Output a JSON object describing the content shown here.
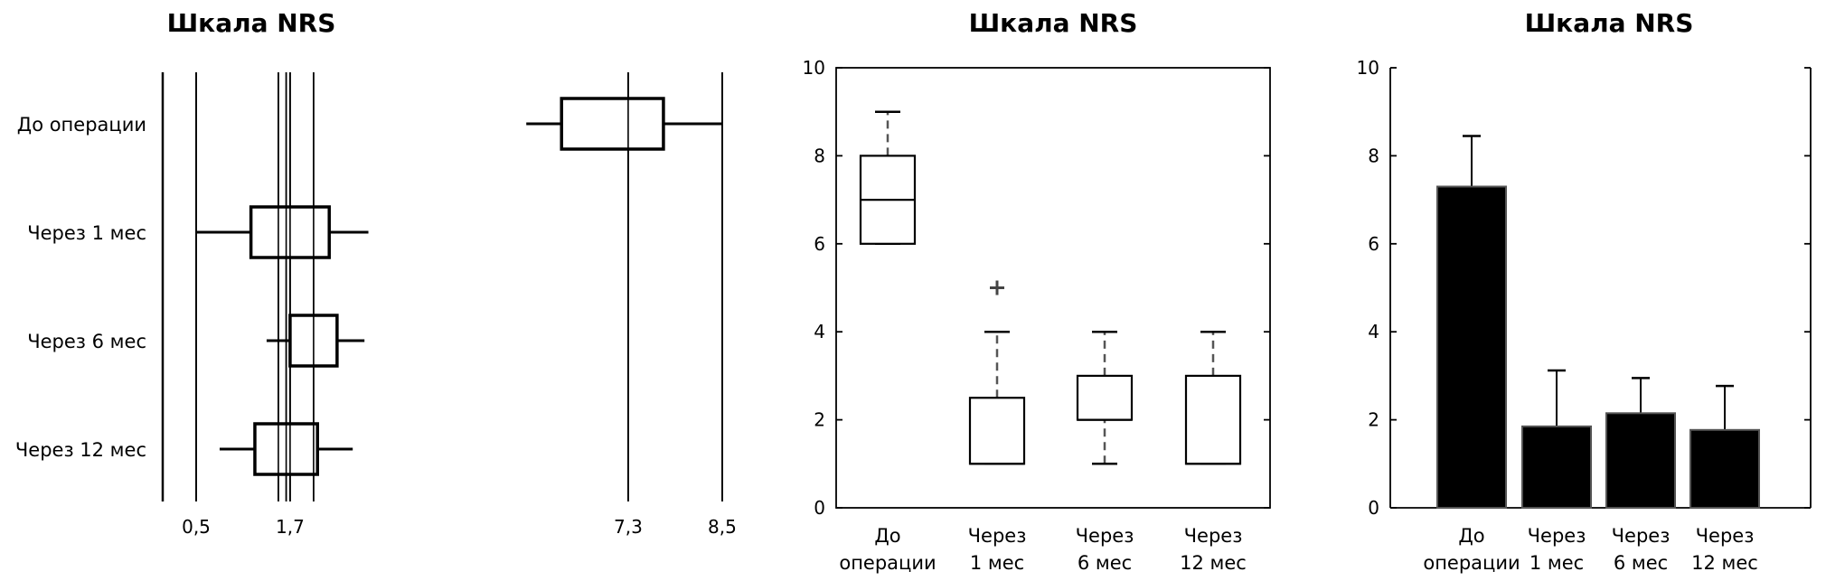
{
  "chart_data": [
    {
      "type": "box",
      "orientation": "horizontal",
      "title": "Шкала NRS",
      "categories": [
        "До операции",
        "Через 1 мес",
        "Через 6 мес",
        "Через 12 мес"
      ],
      "boxes": [
        {
          "whisker_low": 6.0,
          "q1": 6.45,
          "q3": 7.75,
          "whisker_high": 8.5
        },
        {
          "whisker_low": 0.5,
          "q1": 1.2,
          "q3": 2.2,
          "whisker_high": 2.7
        },
        {
          "whisker_low": 1.4,
          "q1": 1.7,
          "q3": 2.3,
          "whisker_high": 2.65
        },
        {
          "whisker_low": 0.8,
          "q1": 1.25,
          "q3": 2.05,
          "whisker_high": 2.5
        }
      ],
      "reference_lines": [
        0.5,
        1.7,
        7.3,
        8.5
      ],
      "reference_labels": [
        "0,5",
        "1,7",
        "7,3",
        "8,5"
      ],
      "extra_lines": [
        1.55,
        1.65,
        2.0
      ],
      "axis_break": {
        "from": 3.0,
        "to": 5.3
      }
    },
    {
      "type": "box",
      "title": "Шкала NRS",
      "categories": [
        [
          "До",
          "операции"
        ],
        [
          "Через",
          "1 мес"
        ],
        [
          "Через",
          "6 мес"
        ],
        [
          "Через",
          "12 мес"
        ]
      ],
      "boxes": [
        {
          "whisker_low": 6,
          "q1": 6,
          "median": 7,
          "q3": 8,
          "whisker_high": 9,
          "outliers": []
        },
        {
          "whisker_low": 1,
          "q1": 1,
          "median": 1,
          "q3": 2.5,
          "whisker_high": 4,
          "outliers": [
            5
          ]
        },
        {
          "whisker_low": 1,
          "q1": 2,
          "median": 2,
          "q3": 3,
          "whisker_high": 4,
          "outliers": []
        },
        {
          "whisker_low": 1,
          "q1": 1,
          "median": 1,
          "q3": 3,
          "whisker_high": 4,
          "outliers": []
        }
      ],
      "ylim": [
        0,
        10
      ],
      "yticks": [
        "0",
        "2",
        "4",
        "6",
        "8",
        "10"
      ]
    },
    {
      "type": "bar",
      "title": "Шкала NRS",
      "categories": [
        [
          "До",
          "операции"
        ],
        [
          "Через",
          "1 мес"
        ],
        [
          "Через",
          "6 мес"
        ],
        [
          "Через",
          "12 мес"
        ]
      ],
      "values": [
        7.3,
        1.85,
        2.15,
        1.77
      ],
      "error_high": [
        8.45,
        3.12,
        2.95,
        2.77
      ],
      "ylim": [
        0,
        10
      ],
      "yticks": [
        "0",
        "2",
        "4",
        "6",
        "8",
        "10"
      ]
    }
  ]
}
